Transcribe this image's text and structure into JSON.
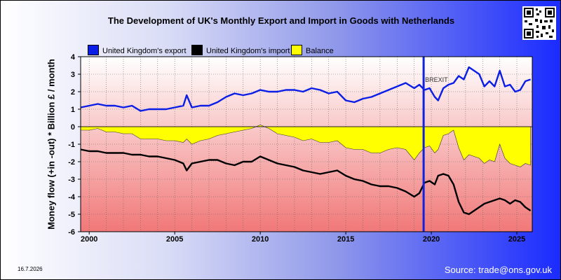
{
  "chart_data": {
    "type": "line",
    "title": "The Development of UK's Monthly Export and Import in Goods with Netherlands",
    "ylabel": "Money flow (+in -out) * Billion £ / month",
    "xlabel": "",
    "xlim": [
      1999.5,
      2025.9
    ],
    "ylim": [
      -6,
      4
    ],
    "x_ticks": [
      2000,
      2005,
      2010,
      2015,
      2020,
      2025
    ],
    "y_ticks": [
      4,
      3,
      2,
      1,
      0,
      -1,
      -2,
      -3,
      -4,
      -5,
      -6
    ],
    "grid": true,
    "legend": "top",
    "series": [
      {
        "name": "United Kingdom's export",
        "color": "#0a1ee6",
        "x": [
          1999.5,
          2000.0,
          2000.5,
          2001.0,
          2001.5,
          2002.0,
          2002.5,
          2003.0,
          2003.5,
          2004.0,
          2004.5,
          2005.0,
          2005.5,
          2005.7,
          2006.0,
          2006.5,
          2007.0,
          2007.5,
          2008.0,
          2008.5,
          2009.0,
          2009.5,
          2010.0,
          2010.5,
          2011.0,
          2011.5,
          2012.0,
          2012.5,
          2013.0,
          2013.5,
          2014.0,
          2014.5,
          2015.0,
          2015.5,
          2016.0,
          2016.5,
          2017.0,
          2017.5,
          2018.0,
          2018.5,
          2019.0,
          2019.3,
          2019.6,
          2019.9,
          2020.2,
          2020.4,
          2020.7,
          2021.0,
          2021.3,
          2021.6,
          2021.9,
          2022.2,
          2022.5,
          2022.8,
          2023.1,
          2023.4,
          2023.7,
          2024.0,
          2024.3,
          2024.6,
          2024.9,
          2025.2,
          2025.5,
          2025.8
        ],
        "y": [
          1.1,
          1.2,
          1.3,
          1.2,
          1.2,
          1.1,
          1.2,
          0.9,
          1.0,
          1.0,
          1.0,
          1.1,
          1.2,
          1.8,
          1.1,
          1.2,
          1.2,
          1.4,
          1.7,
          1.9,
          1.8,
          1.9,
          2.1,
          2.0,
          2.0,
          2.1,
          2.1,
          2.0,
          2.2,
          2.1,
          1.9,
          2.0,
          1.5,
          1.4,
          1.6,
          1.7,
          1.9,
          2.1,
          2.3,
          2.5,
          2.2,
          2.4,
          2.1,
          2.2,
          1.7,
          1.5,
          2.2,
          2.4,
          2.5,
          2.9,
          2.7,
          3.4,
          3.2,
          3.0,
          2.3,
          2.6,
          2.3,
          3.2,
          2.3,
          2.4,
          2.0,
          2.1,
          2.6,
          2.7
        ]
      },
      {
        "name": "United Kingdom's import",
        "color": "#000000",
        "x": [
          1999.5,
          2000.0,
          2000.5,
          2001.0,
          2001.5,
          2002.0,
          2002.5,
          2003.0,
          2003.5,
          2004.0,
          2004.5,
          2005.0,
          2005.5,
          2005.7,
          2006.0,
          2006.5,
          2007.0,
          2007.5,
          2008.0,
          2008.5,
          2009.0,
          2009.5,
          2010.0,
          2010.5,
          2011.0,
          2011.5,
          2012.0,
          2012.5,
          2013.0,
          2013.5,
          2014.0,
          2014.5,
          2015.0,
          2015.5,
          2016.0,
          2016.5,
          2017.0,
          2017.5,
          2018.0,
          2018.5,
          2019.0,
          2019.3,
          2019.6,
          2019.9,
          2020.2,
          2020.4,
          2020.7,
          2021.0,
          2021.3,
          2021.6,
          2021.9,
          2022.2,
          2022.5,
          2022.8,
          2023.1,
          2023.4,
          2023.7,
          2024.0,
          2024.3,
          2024.6,
          2024.9,
          2025.2,
          2025.5,
          2025.8
        ],
        "y": [
          -1.3,
          -1.4,
          -1.4,
          -1.5,
          -1.5,
          -1.5,
          -1.6,
          -1.6,
          -1.7,
          -1.7,
          -1.8,
          -1.9,
          -2.1,
          -2.5,
          -2.1,
          -2.0,
          -1.9,
          -1.9,
          -2.1,
          -2.2,
          -2.0,
          -2.0,
          -1.7,
          -1.9,
          -2.1,
          -2.2,
          -2.3,
          -2.5,
          -2.6,
          -2.7,
          -2.6,
          -2.5,
          -2.8,
          -3.0,
          -3.1,
          -3.3,
          -3.4,
          -3.4,
          -3.5,
          -3.7,
          -4.0,
          -3.8,
          -3.2,
          -3.1,
          -3.3,
          -2.8,
          -2.7,
          -2.8,
          -3.3,
          -4.3,
          -4.9,
          -5.0,
          -4.8,
          -4.6,
          -4.4,
          -4.3,
          -4.2,
          -4.1,
          -4.2,
          -4.4,
          -4.2,
          -4.3,
          -4.6,
          -4.8
        ]
      },
      {
        "name": "Balance",
        "color": "#ffff00",
        "x": [
          1999.5,
          2000.0,
          2000.5,
          2001.0,
          2001.5,
          2002.0,
          2002.5,
          2003.0,
          2003.5,
          2004.0,
          2004.5,
          2005.0,
          2005.5,
          2005.7,
          2006.0,
          2006.5,
          2007.0,
          2007.5,
          2008.0,
          2008.5,
          2009.0,
          2009.5,
          2010.0,
          2010.5,
          2011.0,
          2011.5,
          2012.0,
          2012.5,
          2013.0,
          2013.5,
          2014.0,
          2014.5,
          2015.0,
          2015.5,
          2016.0,
          2016.5,
          2017.0,
          2017.5,
          2018.0,
          2018.5,
          2019.0,
          2019.3,
          2019.6,
          2019.9,
          2020.2,
          2020.4,
          2020.7,
          2021.0,
          2021.3,
          2021.6,
          2021.9,
          2022.2,
          2022.5,
          2022.8,
          2023.1,
          2023.4,
          2023.7,
          2024.0,
          2024.3,
          2024.6,
          2024.9,
          2025.2,
          2025.5,
          2025.8
        ],
        "y": [
          -0.2,
          -0.2,
          -0.1,
          -0.3,
          -0.3,
          -0.4,
          -0.4,
          -0.7,
          -0.7,
          -0.7,
          -0.8,
          -0.8,
          -0.9,
          -0.7,
          -1.0,
          -0.8,
          -0.7,
          -0.5,
          -0.4,
          -0.3,
          -0.2,
          -0.1,
          0.1,
          -0.1,
          -0.4,
          -0.5,
          -0.6,
          -0.8,
          -0.7,
          -0.9,
          -0.9,
          -0.8,
          -1.2,
          -1.3,
          -1.3,
          -1.5,
          -1.5,
          -1.3,
          -1.2,
          -1.3,
          -1.9,
          -1.5,
          -1.2,
          -1.1,
          -1.5,
          -1.3,
          -0.5,
          -0.4,
          -0.2,
          -1.2,
          -1.9,
          -1.6,
          -1.7,
          -1.8,
          -2.1,
          -1.9,
          -2.0,
          -1.0,
          -1.8,
          -2.1,
          -2.2,
          -2.3,
          -2.1,
          -2.2
        ]
      }
    ],
    "annotations": [
      {
        "text": "BREXIT",
        "x": 2019.55,
        "color": "#1122dd"
      }
    ]
  },
  "legend_items": [
    {
      "label": "United Kingdom's export",
      "color": "#0a1ee6"
    },
    {
      "label": "United Kingdom's import",
      "color": "#000000"
    },
    {
      "label": "Balance",
      "color": "#ffff00"
    }
  ],
  "footer": {
    "date": "16.7.2026",
    "source": "Source: trade@ons.gov.uk"
  },
  "qr_icon": "qr-code-icon"
}
